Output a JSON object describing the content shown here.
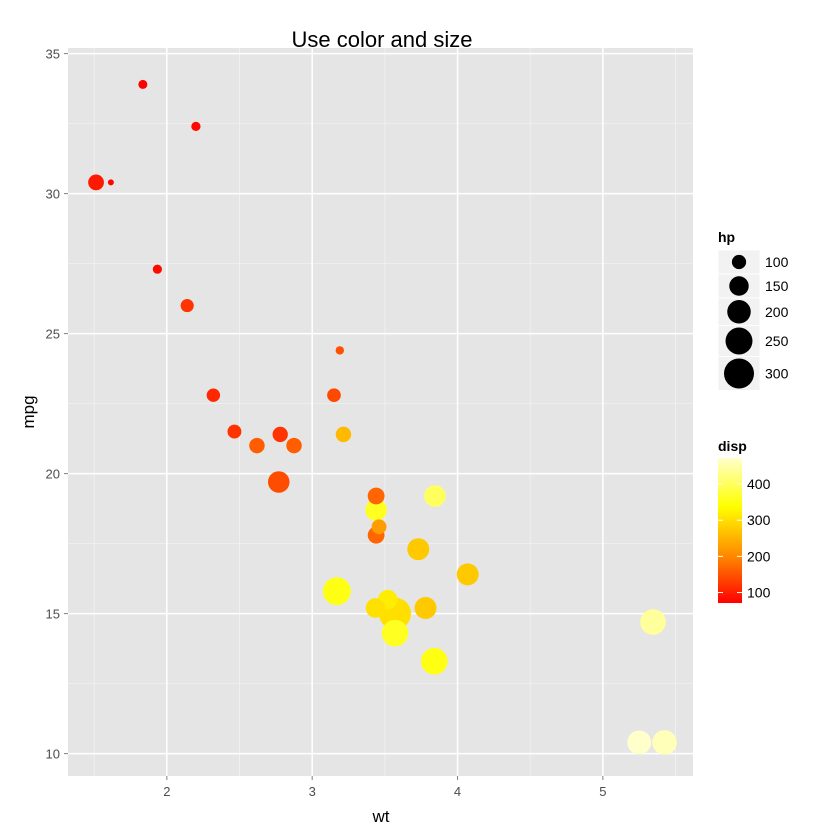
{
  "chart_data": {
    "type": "scatter",
    "title": "Use color and size",
    "xlabel": "wt",
    "ylabel": "mpg",
    "xlim": [
      1.32,
      5.62
    ],
    "ylim": [
      9.2,
      35.2
    ],
    "x_ticks": [
      2,
      3,
      4,
      5
    ],
    "y_ticks": [
      10,
      15,
      20,
      25,
      30,
      35
    ],
    "grid": true,
    "panel_background": "#e5e5e5",
    "grid_color": "#ffffff",
    "legend_position": "right",
    "size_legend": {
      "title": "hp",
      "breaks": [
        100,
        150,
        200,
        250,
        300
      ],
      "color": "#000000"
    },
    "color_legend": {
      "title": "disp",
      "breaks": [
        100,
        200,
        300,
        400
      ],
      "range": [
        71.1,
        472
      ],
      "colors": [
        "#ff0000",
        "#ff8c00",
        "#ffff00",
        "#ffffcc"
      ]
    },
    "points": [
      {
        "wt": 2.62,
        "mpg": 21.0,
        "hp": 110,
        "disp": 160
      },
      {
        "wt": 2.875,
        "mpg": 21.0,
        "hp": 110,
        "disp": 160
      },
      {
        "wt": 2.32,
        "mpg": 22.8,
        "hp": 93,
        "disp": 108
      },
      {
        "wt": 3.215,
        "mpg": 21.4,
        "hp": 110,
        "disp": 258
      },
      {
        "wt": 3.44,
        "mpg": 18.7,
        "hp": 175,
        "disp": 360
      },
      {
        "wt": 3.46,
        "mpg": 18.1,
        "hp": 105,
        "disp": 225
      },
      {
        "wt": 3.57,
        "mpg": 14.3,
        "hp": 245,
        "disp": 360
      },
      {
        "wt": 3.19,
        "mpg": 24.4,
        "hp": 62,
        "disp": 146.7
      },
      {
        "wt": 3.15,
        "mpg": 22.8,
        "hp": 95,
        "disp": 140.8
      },
      {
        "wt": 3.44,
        "mpg": 19.2,
        "hp": 123,
        "disp": 167.6
      },
      {
        "wt": 3.44,
        "mpg": 17.8,
        "hp": 123,
        "disp": 167.6
      },
      {
        "wt": 4.07,
        "mpg": 16.4,
        "hp": 180,
        "disp": 275.8
      },
      {
        "wt": 3.73,
        "mpg": 17.3,
        "hp": 180,
        "disp": 275.8
      },
      {
        "wt": 3.78,
        "mpg": 15.2,
        "hp": 180,
        "disp": 275.8
      },
      {
        "wt": 5.25,
        "mpg": 10.4,
        "hp": 205,
        "disp": 472
      },
      {
        "wt": 5.424,
        "mpg": 10.4,
        "hp": 215,
        "disp": 460
      },
      {
        "wt": 5.345,
        "mpg": 14.7,
        "hp": 230,
        "disp": 440
      },
      {
        "wt": 2.2,
        "mpg": 32.4,
        "hp": 66,
        "disp": 78.7
      },
      {
        "wt": 1.615,
        "mpg": 30.4,
        "hp": 52,
        "disp": 75.7
      },
      {
        "wt": 1.835,
        "mpg": 33.9,
        "hp": 65,
        "disp": 71.1
      },
      {
        "wt": 2.465,
        "mpg": 21.5,
        "hp": 97,
        "disp": 120.1
      },
      {
        "wt": 3.52,
        "mpg": 15.5,
        "hp": 150,
        "disp": 318
      },
      {
        "wt": 3.435,
        "mpg": 15.2,
        "hp": 150,
        "disp": 304
      },
      {
        "wt": 3.84,
        "mpg": 13.3,
        "hp": 245,
        "disp": 350
      },
      {
        "wt": 3.845,
        "mpg": 19.2,
        "hp": 175,
        "disp": 400
      },
      {
        "wt": 1.935,
        "mpg": 27.3,
        "hp": 66,
        "disp": 79
      },
      {
        "wt": 2.14,
        "mpg": 26.0,
        "hp": 91,
        "disp": 120.3
      },
      {
        "wt": 1.513,
        "mpg": 30.4,
        "hp": 113,
        "disp": 95.1
      },
      {
        "wt": 3.17,
        "mpg": 15.8,
        "hp": 264,
        "disp": 351
      },
      {
        "wt": 2.77,
        "mpg": 19.7,
        "hp": 175,
        "disp": 145
      },
      {
        "wt": 3.57,
        "mpg": 15.0,
        "hp": 335,
        "disp": 301
      },
      {
        "wt": 2.78,
        "mpg": 21.4,
        "hp": 109,
        "disp": 121
      }
    ]
  }
}
